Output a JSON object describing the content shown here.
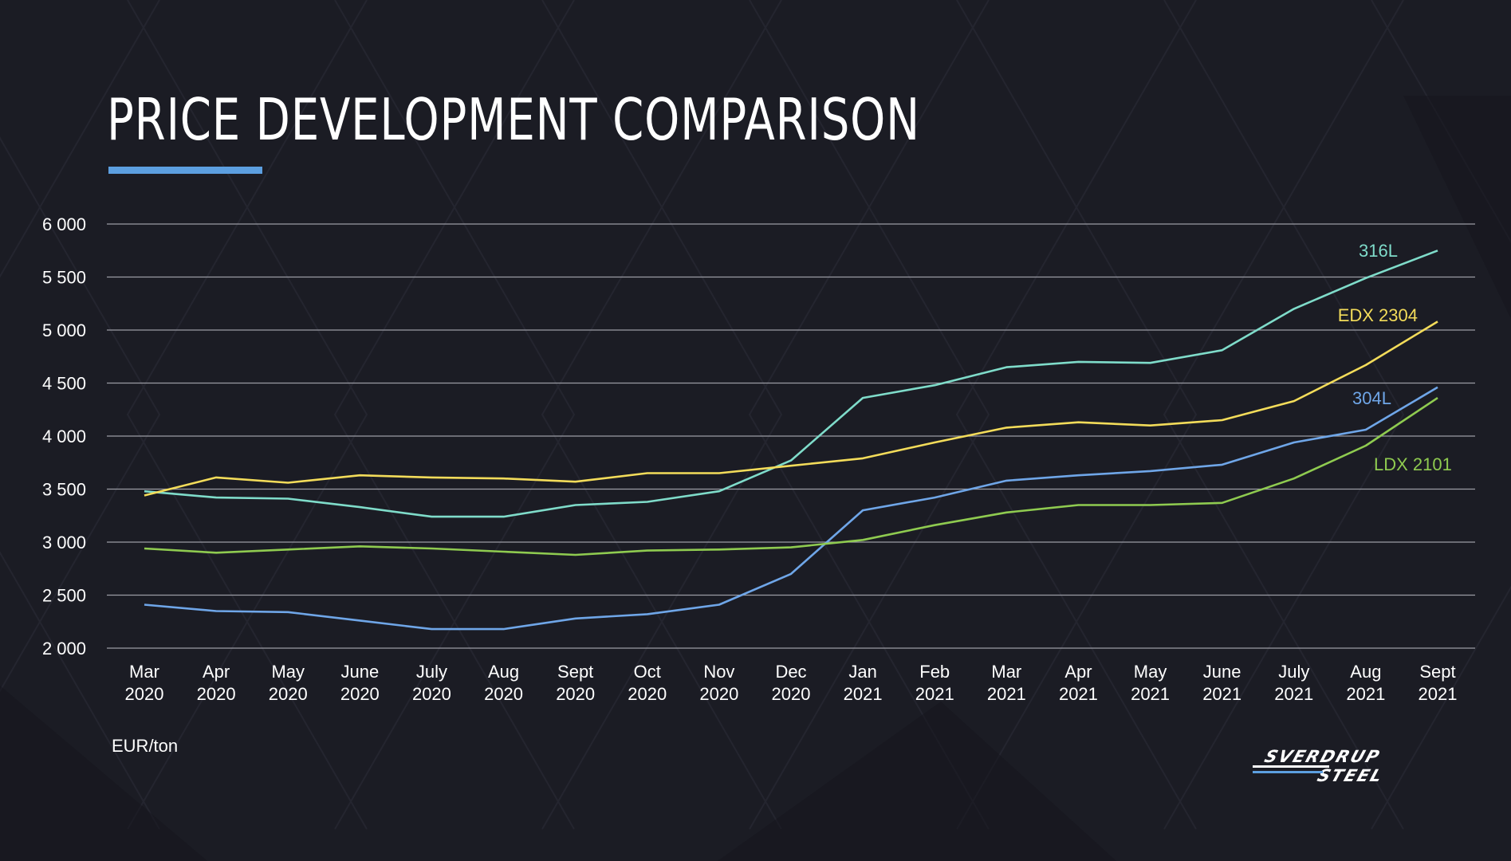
{
  "title": "PRICE DEVELOPMENT COMPARISON",
  "colors": {
    "background": "#1b1c24",
    "accent_bar": "#5c9fe0",
    "gridline": "#9b9ca4"
  },
  "unit_label": "EUR/ton",
  "logo": {
    "line1": "SVERDRUP",
    "line2": "STEEL"
  },
  "chart_data": {
    "type": "line",
    "title": "PRICE DEVELOPMENT COMPARISON",
    "xlabel": "",
    "ylabel": "EUR/ton",
    "ylim": [
      2000,
      6000
    ],
    "yticks": [
      2000,
      2500,
      3000,
      3500,
      4000,
      4500,
      5000,
      5500,
      6000
    ],
    "ytick_labels": [
      "2 000",
      "2 500",
      "3 000",
      "3 500",
      "4 000",
      "4 500",
      "5 000",
      "5 500",
      "6 000"
    ],
    "grid": true,
    "categories": [
      [
        "Mar",
        "2020"
      ],
      [
        "Apr",
        "2020"
      ],
      [
        "May",
        "2020"
      ],
      [
        "June",
        "2020"
      ],
      [
        "July",
        "2020"
      ],
      [
        "Aug",
        "2020"
      ],
      [
        "Sept",
        "2020"
      ],
      [
        "Oct",
        "2020"
      ],
      [
        "Nov",
        "2020"
      ],
      [
        "Dec",
        "2020"
      ],
      [
        "Jan",
        "2021"
      ],
      [
        "Feb",
        "2021"
      ],
      [
        "Mar",
        "2021"
      ],
      [
        "Apr",
        "2021"
      ],
      [
        "May",
        "2021"
      ],
      [
        "June",
        "2021"
      ],
      [
        "July",
        "2021"
      ],
      [
        "Aug",
        "2021"
      ],
      [
        "Sept",
        "2021"
      ]
    ],
    "series": [
      {
        "name": "316L",
        "color": "#7fdcca",
        "label_anchor": "end",
        "values": [
          3480,
          3420,
          3410,
          3330,
          3240,
          3240,
          3350,
          3380,
          3480,
          3770,
          4360,
          4480,
          4650,
          4700,
          4690,
          4810,
          5200,
          5490,
          5750
        ]
      },
      {
        "name": "EDX 2304",
        "color": "#f3dc5a",
        "label_anchor": "end",
        "values": [
          3440,
          3610,
          3560,
          3630,
          3610,
          3600,
          3570,
          3650,
          3650,
          3720,
          3790,
          3940,
          4080,
          4130,
          4100,
          4150,
          4330,
          4670,
          5080
        ]
      },
      {
        "name": "304L",
        "color": "#6fa6e8",
        "label_anchor": "end",
        "values": [
          2410,
          2350,
          2340,
          2260,
          2180,
          2180,
          2280,
          2320,
          2410,
          2700,
          3300,
          3420,
          3580,
          3630,
          3670,
          3730,
          3940,
          4060,
          4460
        ]
      },
      {
        "name": "LDX 2101",
        "color": "#8fcb50",
        "label_anchor": "start",
        "values": [
          2940,
          2900,
          2930,
          2960,
          2940,
          2910,
          2880,
          2920,
          2930,
          2950,
          3020,
          3160,
          3280,
          3350,
          3350,
          3370,
          3600,
          3910,
          4360
        ]
      }
    ]
  }
}
